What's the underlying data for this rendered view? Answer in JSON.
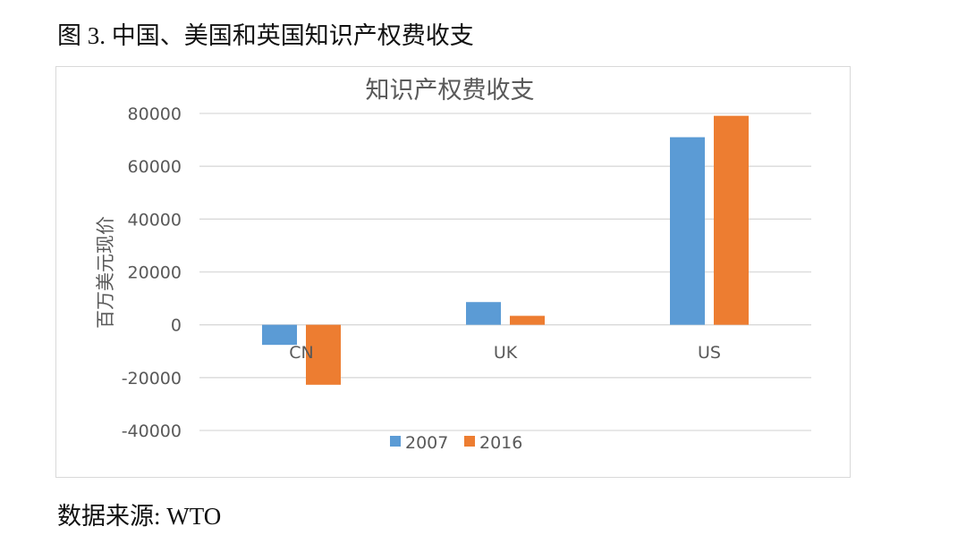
{
  "figure_title": "图 3.  中国、美国和英国知识产权费收支",
  "source_note": "数据来源: WTO",
  "chart_data": {
    "type": "bar",
    "title": "知识产权费收支",
    "ylabel": "百万美元现价",
    "xlabel": "",
    "categories": [
      "CN",
      "UK",
      "US"
    ],
    "series": [
      {
        "name": "2007",
        "color": "#5b9bd5",
        "values": [
          -7600,
          8600,
          71000
        ]
      },
      {
        "name": "2016",
        "color": "#ed7d31",
        "values": [
          -22700,
          3400,
          79100
        ]
      }
    ],
    "ylim": [
      -40000,
      80000
    ],
    "yticks": [
      80000,
      60000,
      40000,
      20000,
      0,
      -20000,
      -40000
    ],
    "grid": true,
    "legend": "bottom"
  }
}
